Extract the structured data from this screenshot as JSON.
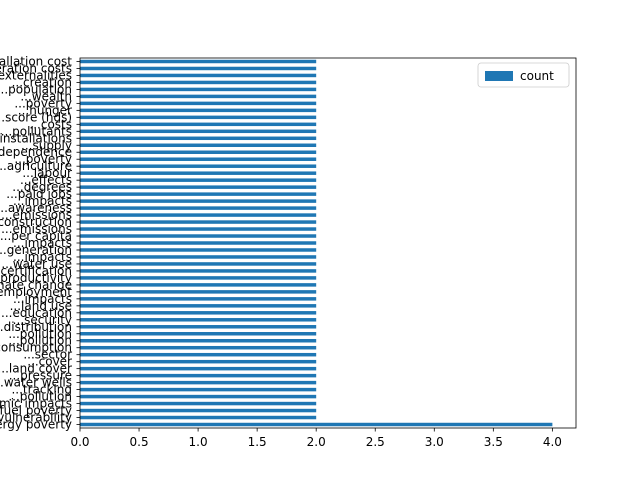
{
  "chart_data": {
    "type": "bar",
    "orientation": "horizontal",
    "title": "",
    "xlabel": "",
    "ylabel": "",
    "xlim": [
      0,
      4.2
    ],
    "grid": false,
    "legend_placement": "upper-right",
    "series": [
      {
        "name": "count",
        "color": "#1f77b4"
      }
    ],
    "x_ticks": [
      "0.0",
      "0.5",
      "1.0",
      "1.5",
      "2.0",
      "2.5",
      "3.0",
      "3.5",
      "4.0"
    ],
    "categories": [
      "energy poverty",
      "vulnerability",
      "fuel poverty",
      "economic impacts",
      "...pollution",
      "...tracking",
      "...water wells",
      "...pressure",
      "...land cover",
      "...cover",
      "...sector",
      "...consumption",
      "...pollution",
      "...pollution",
      "...distribution",
      "...security",
      "...education",
      "...land use",
      "...impacts",
      "...employment",
      "...climate change",
      "...productivity",
      "...certification",
      "...water use",
      "...impacts",
      "...generation",
      "...impacts",
      "...per capita",
      "...emissions",
      "...construction",
      "...emissions",
      "...awareness",
      "...impacts",
      "...paid jobs",
      "...degrees",
      "...effects",
      "...labour",
      "...agriculture",
      "...poverty",
      "...dependence",
      "...supply",
      "...installations",
      "...pollutants",
      "...costs",
      "...score (hds)",
      "...hunger",
      "...poverty",
      "...wealth",
      "...population",
      "...creation",
      "...externalities",
      "...operation costs",
      "installation cost"
    ],
    "values": [
      4,
      2,
      2,
      2,
      2,
      2,
      2,
      2,
      2,
      2,
      2,
      2,
      2,
      2,
      2,
      2,
      2,
      2,
      2,
      2,
      2,
      2,
      2,
      2,
      2,
      2,
      2,
      2,
      2,
      2,
      2,
      2,
      2,
      2,
      2,
      2,
      2,
      2,
      2,
      2,
      2,
      2,
      2,
      2,
      2,
      2,
      2,
      2,
      2,
      2,
      2,
      2,
      2
    ]
  }
}
